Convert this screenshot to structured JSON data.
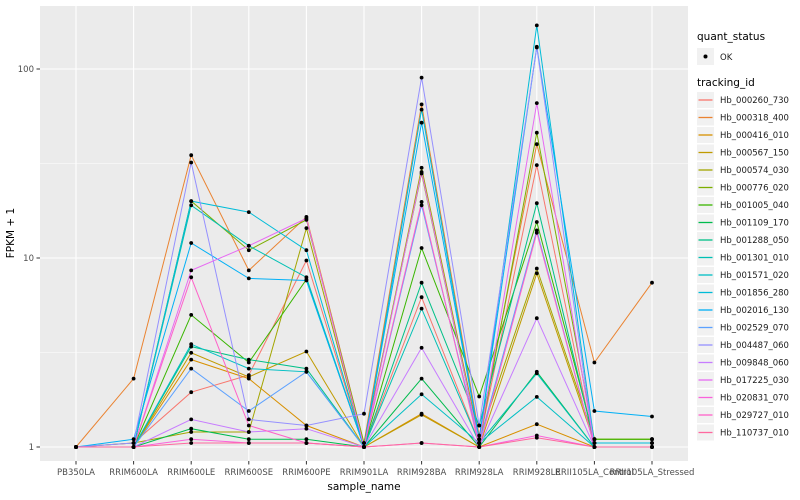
{
  "chart_data": {
    "type": "line",
    "xlabel": "sample_name",
    "ylabel": "FPKM + 1",
    "y_scale": "log10",
    "y_ticks": [
      1,
      10,
      100
    ],
    "y_minor_ticks": [
      3.1623,
      31.623
    ],
    "ylim": [
      0.95,
      210
    ],
    "grid": true,
    "panel_bg": "#EBEBEB",
    "grid_color": "#FFFFFF",
    "point_color": "#000000",
    "legend": {
      "position": "right",
      "quant_status_title": "quant_status",
      "quant_status_items": [
        {
          "label": "OK",
          "shape": "point"
        }
      ],
      "tracking_title": "tracking_id",
      "key_bg": "#F1F1F1"
    },
    "categories": [
      "PB350LA",
      "RRIM600LA",
      "RRIM600LE",
      "RRIM600SE",
      "RRIM600PE",
      "RRIM901LA",
      "RRIM928BA",
      "RRIM928LA",
      "RRIM928LE",
      "RRII105LA_Control",
      "RRII105LA_Stressed"
    ],
    "series": [
      {
        "name": "Hb_000260_730",
        "color": "#F8766D",
        "values": [
          1.0,
          1.05,
          1.95,
          2.4,
          9.7,
          1.0,
          6.2,
          1.05,
          31,
          1.0,
          1.0
        ]
      },
      {
        "name": "Hb_000318_400",
        "color": "#EA8331",
        "values": [
          1.0,
          2.3,
          35,
          8.6,
          16.5,
          1.05,
          65,
          1.15,
          40,
          2.8,
          7.4
        ]
      },
      {
        "name": "Hb_000416_010",
        "color": "#D89000",
        "values": [
          1.0,
          1.0,
          2.9,
          2.3,
          1.3,
          1.0,
          1.5,
          1.0,
          1.32,
          1.0,
          1.0
        ]
      },
      {
        "name": "Hb_000567_150",
        "color": "#C09B00",
        "values": [
          1.0,
          1.0,
          3.15,
          2.35,
          3.2,
          1.0,
          1.48,
          1.0,
          8.3,
          1.05,
          1.05
        ]
      },
      {
        "name": "Hb_000574_030",
        "color": "#A3A500",
        "values": [
          1.0,
          1.05,
          1.2,
          1.2,
          14.4,
          1.0,
          30,
          1.1,
          8.8,
          1.1,
          1.1
        ]
      },
      {
        "name": "Hb_000776_020",
        "color": "#7CAE00",
        "values": [
          1.0,
          1.0,
          20,
          11,
          15.9,
          1.05,
          28,
          1.05,
          46,
          1.1,
          1.1
        ]
      },
      {
        "name": "Hb_001005_040",
        "color": "#39B600",
        "values": [
          1.0,
          1.0,
          5.0,
          2.8,
          7.7,
          1.0,
          11.3,
          1.85,
          15.5,
          1.1,
          1.1
        ]
      },
      {
        "name": "Hb_001109_170",
        "color": "#00BB4E",
        "values": [
          1.0,
          1.0,
          1.25,
          1.1,
          1.1,
          1.0,
          2.3,
          1.0,
          2.5,
          1.0,
          1.0
        ]
      },
      {
        "name": "Hb_001288_050",
        "color": "#00C087",
        "values": [
          1.0,
          1.0,
          3.4,
          2.9,
          2.6,
          1.0,
          7.4,
          1.3,
          19.5,
          1.05,
          1.05
        ]
      },
      {
        "name": "Hb_001301_010",
        "color": "#00C0B4",
        "values": [
          1.0,
          1.0,
          19,
          11.6,
          7.9,
          1.0,
          5.4,
          1.05,
          2.45,
          1.0,
          1.0
        ]
      },
      {
        "name": "Hb_001571_020",
        "color": "#00BFC4",
        "values": [
          1.0,
          1.0,
          3.5,
          2.6,
          2.5,
          1.0,
          1.9,
          1.05,
          1.84,
          1.0,
          1.0
        ]
      },
      {
        "name": "Hb_001856_280",
        "color": "#00BCD8",
        "values": [
          1.0,
          1.0,
          20,
          17.5,
          11,
          1.0,
          61,
          1.1,
          170,
          1.05,
          1.05
        ]
      },
      {
        "name": "Hb_002016_130",
        "color": "#00B0F6",
        "values": [
          1.0,
          1.1,
          12,
          7.8,
          7.6,
          1.0,
          52,
          1.1,
          131,
          1.55,
          1.45
        ]
      },
      {
        "name": "Hb_002529_070",
        "color": "#5CA1FF",
        "values": [
          1.0,
          1.0,
          2.6,
          1.55,
          2.5,
          1.0,
          19,
          1.05,
          14,
          1.0,
          1.0
        ]
      },
      {
        "name": "Hb_004487_060",
        "color": "#9590FF",
        "values": [
          1.0,
          1.05,
          32,
          1.4,
          1.3,
          1.5,
          90,
          1.3,
          130,
          1.0,
          1.0
        ]
      },
      {
        "name": "Hb_009848_060",
        "color": "#C77CFF",
        "values": [
          1.0,
          1.0,
          1.4,
          1.2,
          1.25,
          1.0,
          3.35,
          1.0,
          4.8,
          1.0,
          1.0
        ]
      },
      {
        "name": "Hb_017225_030",
        "color": "#E76BF3",
        "values": [
          1.0,
          1.0,
          8.6,
          11.6,
          16.2,
          1.0,
          28.5,
          1.05,
          66,
          1.0,
          1.0
        ]
      },
      {
        "name": "Hb_020831_070",
        "color": "#FA62DB",
        "values": [
          1.0,
          1.0,
          1.1,
          1.05,
          1.05,
          1.0,
          1.05,
          1.0,
          1.15,
          1.0,
          1.0
        ]
      },
      {
        "name": "Hb_029727_010",
        "color": "#FF61C9",
        "values": [
          1.0,
          1.0,
          7.9,
          1.3,
          1.05,
          1.0,
          19.8,
          1.0,
          13.6,
          1.0,
          1.0
        ]
      },
      {
        "name": "Hb_110737_010",
        "color": "#FF689F",
        "values": [
          1.0,
          1.0,
          1.05,
          1.05,
          1.05,
          1.0,
          1.05,
          1.0,
          1.12,
          1.0,
          1.0
        ]
      }
    ]
  }
}
